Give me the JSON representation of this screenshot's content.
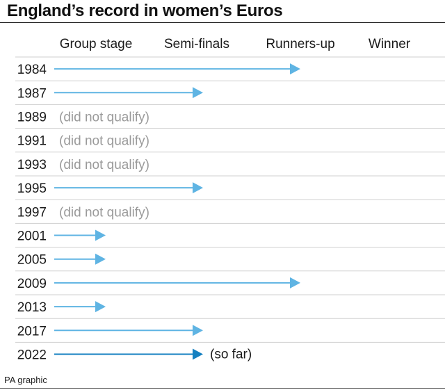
{
  "title": "England’s record in women’s Euros",
  "source": "PA graphic",
  "chart_data": {
    "type": "bar",
    "stages": [
      "Group stage",
      "Semi-finals",
      "Runners-up",
      "Winner"
    ],
    "rows": [
      {
        "year": "1984",
        "stage": 3,
        "label": ""
      },
      {
        "year": "1987",
        "stage": 2,
        "label": ""
      },
      {
        "year": "1989",
        "stage": 0,
        "label": "(did not qualify)"
      },
      {
        "year": "1991",
        "stage": 0,
        "label": "(did not qualify)"
      },
      {
        "year": "1993",
        "stage": 0,
        "label": "(did not qualify)"
      },
      {
        "year": "1995",
        "stage": 2,
        "label": ""
      },
      {
        "year": "1997",
        "stage": 0,
        "label": "(did not qualify)"
      },
      {
        "year": "2001",
        "stage": 1,
        "label": ""
      },
      {
        "year": "2005",
        "stage": 1,
        "label": ""
      },
      {
        "year": "2009",
        "stage": 3,
        "label": ""
      },
      {
        "year": "2013",
        "stage": 1,
        "label": ""
      },
      {
        "year": "2017",
        "stage": 2,
        "label": ""
      },
      {
        "year": "2022",
        "stage": 2,
        "label": "(so far)",
        "highlight": true
      }
    ],
    "colors": {
      "arrow": "#5fb4e3",
      "highlight": "#1580c0",
      "gridline": "#cfcfcf",
      "dnq_text": "#9a9a9a"
    }
  }
}
